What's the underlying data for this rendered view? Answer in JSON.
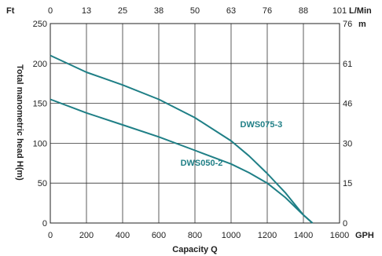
{
  "chart_data": {
    "type": "line",
    "xlabel": "Capacity Q",
    "ylabel": "Total manometric head H(m)",
    "x_unit": "GPH",
    "y_unit_left": "Ft",
    "x_unit_top": "L/Min",
    "y_unit_right": "m",
    "xlim": [
      0,
      1600
    ],
    "ylim": [
      0,
      250
    ],
    "x_ticks": [
      0,
      200,
      400,
      600,
      800,
      1000,
      1200,
      1400,
      1600
    ],
    "y_ticks": [
      0,
      50,
      100,
      150,
      200,
      250
    ],
    "top_tick_labels": [
      "0",
      "13",
      "25",
      "38",
      "50",
      "63",
      "76",
      "88",
      "101"
    ],
    "right_tick_labels": [
      "0",
      "15",
      "30",
      "46",
      "61",
      "76"
    ],
    "grid": true,
    "series": [
      {
        "name": "DWS075-3",
        "color": "#1f7f86",
        "points": [
          [
            0,
            210
          ],
          [
            200,
            189
          ],
          [
            400,
            173
          ],
          [
            600,
            155
          ],
          [
            800,
            132
          ],
          [
            1000,
            103
          ],
          [
            1100,
            84
          ],
          [
            1200,
            62
          ],
          [
            1300,
            38
          ],
          [
            1400,
            10
          ],
          [
            1450,
            0
          ]
        ]
      },
      {
        "name": "DWS050-2",
        "color": "#1f7f86",
        "points": [
          [
            0,
            155
          ],
          [
            200,
            138
          ],
          [
            400,
            123
          ],
          [
            600,
            108
          ],
          [
            800,
            91
          ],
          [
            1000,
            74
          ],
          [
            1100,
            63
          ],
          [
            1200,
            50
          ],
          [
            1300,
            32
          ],
          [
            1400,
            10
          ],
          [
            1450,
            0
          ]
        ]
      }
    ]
  }
}
